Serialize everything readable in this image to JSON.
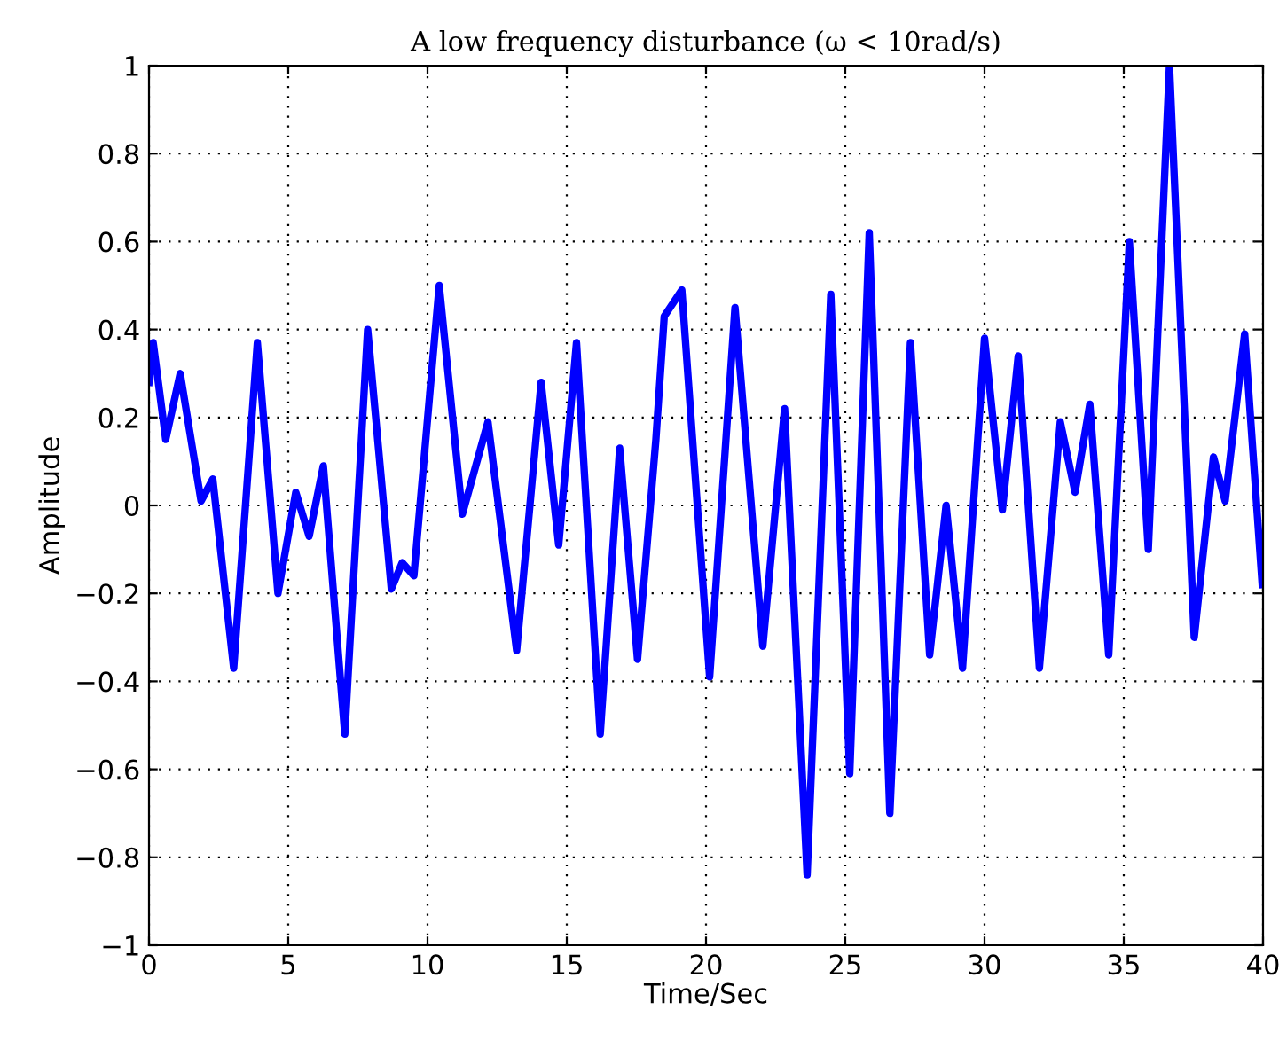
{
  "chart_data": {
    "type": "line",
    "title": "A low frequency disturbance (ω < 10rad/s)",
    "xlabel": "Time/Sec",
    "ylabel": "Amplitude",
    "x": [
      0,
      0.15,
      0.6,
      1.12,
      1.87,
      2.29,
      3.04,
      3.89,
      4.63,
      5.27,
      5.75,
      6.26,
      7.03,
      7.85,
      8.7,
      9.09,
      9.51,
      10.42,
      11.25,
      12.17,
      13.2,
      14.08,
      14.71,
      15.35,
      16.2,
      16.9,
      17.54,
      18.2,
      18.5,
      19.13,
      20.13,
      21.04,
      22.04,
      22.82,
      23.63,
      24.48,
      25.16,
      25.86,
      26.6,
      27.34,
      28.03,
      28.62,
      29.21,
      30.0,
      30.64,
      31.21,
      31.97,
      32.72,
      33.25,
      33.78,
      34.46,
      35.2,
      35.88,
      36.64,
      37.53,
      38.22,
      38.64,
      39.34,
      39.97
    ],
    "series": [
      {
        "color": "#0000ff",
        "values": [
          0.28,
          0.37,
          0.15,
          0.3,
          0.01,
          0.06,
          -0.37,
          0.37,
          -0.2,
          0.03,
          -0.07,
          0.09,
          -0.52,
          0.4,
          -0.19,
          -0.13,
          -0.16,
          0.5,
          -0.02,
          0.19,
          -0.33,
          0.28,
          -0.09,
          0.37,
          -0.52,
          0.13,
          -0.35,
          0.15,
          0.43,
          0.49,
          -0.39,
          0.45,
          -0.32,
          0.22,
          -0.84,
          0.48,
          -0.61,
          0.62,
          -0.7,
          0.37,
          -0.34,
          0.0,
          -0.37,
          0.38,
          -0.01,
          0.34,
          -0.37,
          0.19,
          0.03,
          0.23,
          -0.34,
          0.6,
          -0.1,
          1.0,
          -0.3,
          0.11,
          0.01,
          0.39,
          -0.18
        ]
      }
    ],
    "xlim": [
      0,
      40
    ],
    "ylim": [
      -1,
      1
    ],
    "xticks": [
      0,
      5,
      10,
      15,
      20,
      25,
      30,
      35,
      40
    ],
    "yticks": [
      {
        "value": -1,
        "label": "−1"
      },
      {
        "value": -0.8,
        "label": "−0.8"
      },
      {
        "value": -0.6,
        "label": "−0.6"
      },
      {
        "value": -0.4,
        "label": "−0.4"
      },
      {
        "value": -0.2,
        "label": "−0.2"
      },
      0,
      0.2,
      0.4,
      0.6,
      0.8,
      1
    ],
    "grid": true,
    "line_style": "solid"
  }
}
